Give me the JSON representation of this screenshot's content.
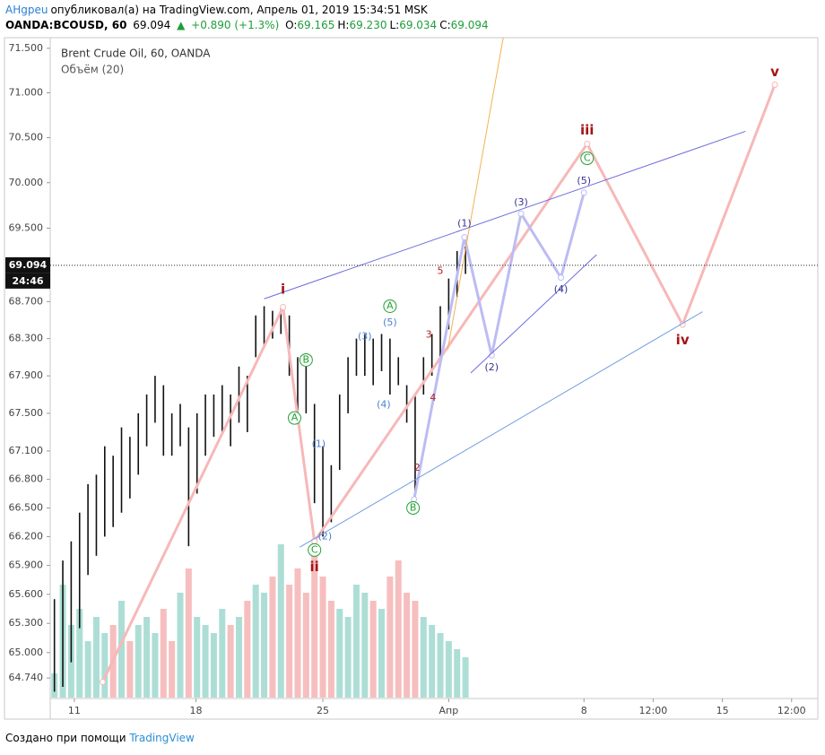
{
  "header": {
    "user": "AHgреu",
    "published": "опубликовал(а) на TradingView.com, Апрель 01, 2019 15:34:51 MSK",
    "symbol": "OANDA:BCOUSD, 60",
    "last": "69.094",
    "arrow": "▲",
    "change": "+0.890 (+1.3%)",
    "ohlc": [
      {
        "label": "O:",
        "value": "69.165"
      },
      {
        "label": "H:",
        "value": "69.230"
      },
      {
        "label": "L:",
        "value": "69.034"
      },
      {
        "label": "C:",
        "value": "69.094"
      }
    ]
  },
  "chart_data": {
    "type": "ohlc",
    "title": "Brent Crude Oil, 60, OANDA",
    "subtitle": "Объём (20)",
    "log_scale": true,
    "grid": false,
    "bar_color": "#111111",
    "up_color": "#9fd8cf",
    "down_color": "#f4b3b3",
    "ylim": [
      64.54,
      71.62
    ],
    "yticks": [
      {
        "value": 71.5,
        "label": "71.500"
      },
      {
        "value": 71.0,
        "label": "71.000"
      },
      {
        "value": 70.5,
        "label": "70.500"
      },
      {
        "value": 70.0,
        "label": "70.000"
      },
      {
        "value": 69.5,
        "label": "69.500"
      },
      {
        "value": 68.7,
        "label": "68.700"
      },
      {
        "value": 68.3,
        "label": "68.300"
      },
      {
        "value": 67.9,
        "label": "67.900"
      },
      {
        "value": 67.5,
        "label": "67.500"
      },
      {
        "value": 67.1,
        "label": "67.100"
      },
      {
        "value": 66.8,
        "label": "66.800"
      },
      {
        "value": 66.5,
        "label": "66.500"
      },
      {
        "value": 66.2,
        "label": "66.200"
      },
      {
        "value": 65.9,
        "label": "65.900"
      },
      {
        "value": 65.6,
        "label": "65.600"
      },
      {
        "value": 65.3,
        "label": "65.300"
      },
      {
        "value": 65.0,
        "label": "65.000"
      },
      {
        "value": 64.74,
        "label": "64.740"
      }
    ],
    "xlim": [
      0,
      732
    ],
    "xticks": [
      {
        "value": 23,
        "label": "11"
      },
      {
        "value": 139,
        "label": "18"
      },
      {
        "value": 260,
        "label": "25"
      },
      {
        "value": 380,
        "label": "Апр"
      },
      {
        "value": 509,
        "label": "8"
      },
      {
        "value": 575,
        "label": "12:00"
      },
      {
        "value": 641,
        "label": "15"
      },
      {
        "value": 707,
        "label": "12:00"
      }
    ],
    "x": [
      4,
      12,
      20,
      28,
      36,
      44,
      52,
      60,
      68,
      76,
      84,
      92,
      100,
      108,
      116,
      124,
      132,
      140,
      148,
      156,
      164,
      172,
      180,
      188,
      196,
      204,
      212,
      220,
      228,
      236,
      244,
      252,
      260,
      268,
      276,
      284,
      292,
      300,
      308,
      316,
      324,
      332,
      340,
      348,
      356,
      364,
      372,
      380,
      388,
      396
    ],
    "high": [
      65.55,
      65.95,
      66.15,
      66.45,
      66.75,
      66.85,
      67.15,
      67.05,
      67.35,
      67.25,
      67.5,
      67.7,
      67.9,
      67.8,
      67.5,
      67.6,
      67.35,
      67.5,
      67.7,
      67.7,
      67.8,
      67.7,
      68.0,
      67.9,
      68.55,
      68.65,
      68.6,
      68.65,
      68.55,
      68.1,
      68.0,
      67.6,
      67.15,
      66.95,
      67.7,
      68.1,
      68.3,
      68.35,
      68.3,
      68.35,
      68.3,
      68.1,
      67.8,
      67.7,
      68.1,
      68.35,
      68.65,
      68.95,
      69.25,
      69.3
    ],
    "low": [
      64.6,
      64.65,
      64.9,
      65.25,
      65.8,
      66.0,
      66.2,
      66.3,
      66.45,
      66.6,
      66.85,
      67.15,
      67.4,
      67.05,
      67.05,
      67.15,
      66.1,
      66.65,
      67.05,
      67.25,
      67.3,
      67.15,
      67.4,
      67.3,
      68.1,
      68.2,
      68.3,
      68.35,
      67.9,
      67.5,
      67.5,
      66.55,
      66.2,
      66.35,
      66.9,
      67.5,
      67.9,
      67.9,
      67.8,
      67.95,
      67.7,
      67.8,
      67.4,
      66.55,
      67.7,
      67.9,
      68.1,
      68.4,
      68.75,
      69.0
    ],
    "volume": [
      300,
      1400,
      900,
      1100,
      700,
      1000,
      800,
      900,
      1200,
      700,
      900,
      1000,
      800,
      1100,
      700,
      1300,
      1600,
      1000,
      900,
      800,
      1100,
      900,
      1000,
      1200,
      1400,
      1300,
      1500,
      1900,
      1400,
      1600,
      1300,
      1800,
      1500,
      1200,
      1100,
      1000,
      1400,
      1300,
      1200,
      1100,
      1500,
      1700,
      1300,
      1200,
      1000,
      900,
      800,
      700,
      600,
      500
    ],
    "volume_lim": [
      0,
      2000
    ],
    "last_price": {
      "value": 69.094,
      "label": "69.094",
      "countdown": "24:46"
    },
    "drawings": [
      {
        "color": "#f7b8b8",
        "width": 3,
        "points": [
          [
            50,
            64.7
          ],
          [
            222,
            68.64
          ],
          [
            252,
            66.15
          ],
          [
            512,
            70.43
          ],
          [
            603,
            68.45
          ],
          [
            691,
            71.09
          ]
        ]
      },
      {
        "color": "#bcbcf4",
        "width": 3,
        "points": [
          [
            347,
            66.59
          ],
          [
            395,
            69.4
          ],
          [
            421,
            68.12
          ],
          [
            449,
            69.66
          ],
          [
            487,
            68.96
          ],
          [
            509,
            69.89
          ]
        ]
      },
      {
        "color": "#6d6dde",
        "width": 1,
        "points": [
          [
            204,
            68.73
          ],
          [
            663,
            70.57
          ]
        ]
      },
      {
        "color": "#6d6dde",
        "width": 1,
        "points": [
          [
            401,
            67.93
          ],
          [
            521,
            69.21
          ]
        ]
      },
      {
        "color": "#6f9be0",
        "width": 1,
        "points": [
          [
            238,
            66.09
          ],
          [
            622,
            68.59
          ]
        ]
      },
      {
        "color": "#f5b054",
        "width": 1,
        "points": [
          [
            379,
            68.18
          ],
          [
            432,
            71.62
          ]
        ]
      }
    ],
    "labels": [
      {
        "text": "i",
        "x": 222,
        "y": 68.83,
        "style": "wave"
      },
      {
        "text": "ii",
        "x": 252,
        "y": 65.88,
        "style": "wave"
      },
      {
        "text": "iii",
        "x": 512,
        "y": 70.58,
        "style": "wave"
      },
      {
        "text": "iv",
        "x": 603,
        "y": 68.28,
        "style": "wave"
      },
      {
        "text": "v",
        "x": 691,
        "y": 71.23,
        "style": "wave"
      },
      {
        "text": "A",
        "x": 233,
        "y": 67.45,
        "style": "circle"
      },
      {
        "text": "B",
        "x": 244,
        "y": 68.07,
        "style": "circle"
      },
      {
        "text": "C",
        "x": 252,
        "y": 66.06,
        "style": "circle"
      },
      {
        "text": "A",
        "x": 324,
        "y": 68.65,
        "style": "circle"
      },
      {
        "text": "B",
        "x": 346,
        "y": 66.5,
        "style": "circle"
      },
      {
        "text": "C",
        "x": 512,
        "y": 70.27,
        "style": "circle"
      },
      {
        "text": "(1)",
        "x": 256,
        "y": 67.17,
        "style": "minor"
      },
      {
        "text": "(2)",
        "x": 262,
        "y": 66.2,
        "style": "minor"
      },
      {
        "text": "(3)",
        "x": 300,
        "y": 68.32,
        "style": "minor"
      },
      {
        "text": "(4)",
        "x": 318,
        "y": 67.59,
        "style": "minor"
      },
      {
        "text": "(5)",
        "x": 324,
        "y": 68.47,
        "style": "minor"
      },
      {
        "text": "(1)",
        "x": 395,
        "y": 69.55,
        "style": "future"
      },
      {
        "text": "(2)",
        "x": 421,
        "y": 67.99,
        "style": "future"
      },
      {
        "text": "(3)",
        "x": 449,
        "y": 69.78,
        "style": "future"
      },
      {
        "text": "(4)",
        "x": 487,
        "y": 68.83,
        "style": "future"
      },
      {
        "text": "(5)",
        "x": 509,
        "y": 70.02,
        "style": "future"
      },
      {
        "text": "2",
        "x": 350,
        "y": 66.92,
        "style": "sub"
      },
      {
        "text": "3",
        "x": 361,
        "y": 68.34,
        "style": "sub"
      },
      {
        "text": "4",
        "x": 365,
        "y": 67.66,
        "style": "sub"
      },
      {
        "text": "5",
        "x": 372,
        "y": 69.03,
        "style": "sub"
      }
    ]
  },
  "footer": {
    "text": "Создано при помощи",
    "brand": "TradingView"
  }
}
